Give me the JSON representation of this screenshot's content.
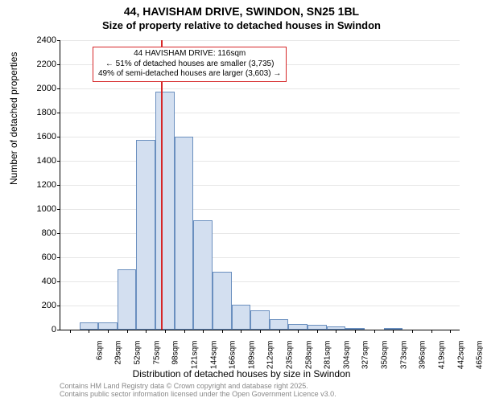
{
  "title_line1": "44, HAVISHAM DRIVE, SWINDON, SN25 1BL",
  "title_line2": "Size of property relative to detached houses in Swindon",
  "xlabel": "Distribution of detached houses by size in Swindon",
  "ylabel": "Number of detached properties",
  "footer_line1": "Contains HM Land Registry data © Crown copyright and database right 2025.",
  "footer_line2": "Contains public sector information licensed under the Open Government Licence v3.0.",
  "chart": {
    "type": "histogram",
    "ylim": [
      0,
      2400
    ],
    "yticks": [
      0,
      200,
      400,
      600,
      800,
      1000,
      1200,
      1400,
      1600,
      1800,
      2000,
      2200,
      2400
    ],
    "xticks": [
      6,
      29,
      52,
      75,
      98,
      121,
      144,
      166,
      189,
      212,
      235,
      258,
      281,
      304,
      327,
      350,
      373,
      396,
      419,
      442,
      465
    ],
    "xtick_unit": "sqm",
    "bars": [
      {
        "x": 6,
        "count": 0
      },
      {
        "x": 29,
        "count": 60
      },
      {
        "x": 52,
        "count": 60
      },
      {
        "x": 75,
        "count": 500
      },
      {
        "x": 98,
        "count": 1575
      },
      {
        "x": 121,
        "count": 1975
      },
      {
        "x": 144,
        "count": 1600
      },
      {
        "x": 166,
        "count": 910
      },
      {
        "x": 189,
        "count": 480
      },
      {
        "x": 212,
        "count": 210
      },
      {
        "x": 235,
        "count": 160
      },
      {
        "x": 258,
        "count": 90
      },
      {
        "x": 281,
        "count": 50
      },
      {
        "x": 304,
        "count": 40
      },
      {
        "x": 327,
        "count": 25
      },
      {
        "x": 350,
        "count": 10
      },
      {
        "x": 373,
        "count": 0
      },
      {
        "x": 396,
        "count": 5
      },
      {
        "x": 419,
        "count": 0
      },
      {
        "x": 442,
        "count": 0
      },
      {
        "x": 465,
        "count": 0
      }
    ],
    "bar_fill": "#d3dff0",
    "bar_stroke": "#6a8fbf",
    "grid_color": "#e6e6e6",
    "background_color": "#ffffff",
    "marker": {
      "x": 116,
      "color": "#d62728"
    },
    "annotation": {
      "border_color": "#d62728",
      "line1": "44 HAVISHAM DRIVE: 116sqm",
      "line2": "← 51% of detached houses are smaller (3,735)",
      "line3": "49% of semi-detached houses are larger (3,603) →"
    },
    "fontsize_title": 14,
    "fontsize_label": 12,
    "fontsize_tick": 11
  }
}
